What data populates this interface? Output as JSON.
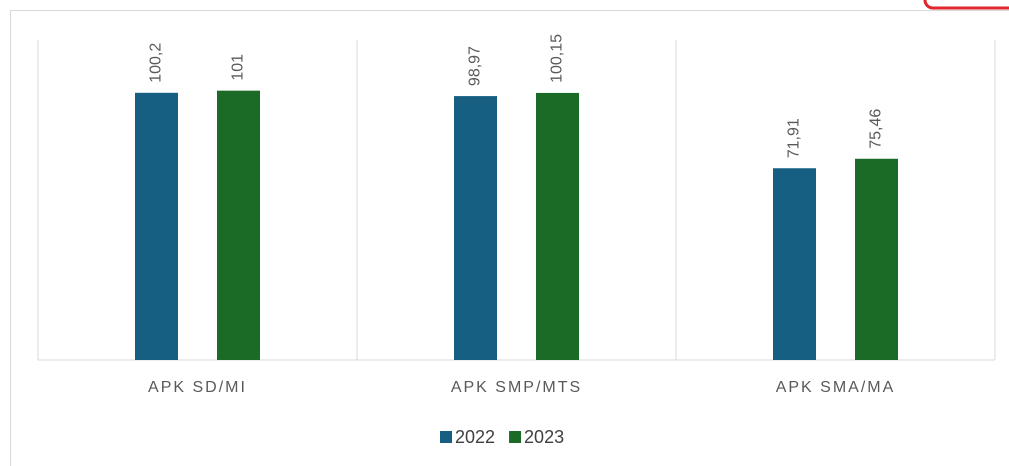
{
  "chart_data": {
    "type": "bar",
    "categories": [
      "APK SD/MI",
      "APK SMP/MTS",
      "APK SMA/MA"
    ],
    "series": [
      {
        "name": "2022",
        "color": "#175f82",
        "values": [
          100.2,
          98.97,
          71.91
        ],
        "value_labels": [
          "100,2",
          "98,97",
          "71,91"
        ]
      },
      {
        "name": "2023",
        "color": "#1b6b27",
        "values": [
          101,
          100.15,
          75.46
        ],
        "value_labels": [
          "101",
          "100,15",
          "75,46"
        ]
      }
    ],
    "ylim": [
      0,
      120
    ],
    "legend": "bottom"
  }
}
